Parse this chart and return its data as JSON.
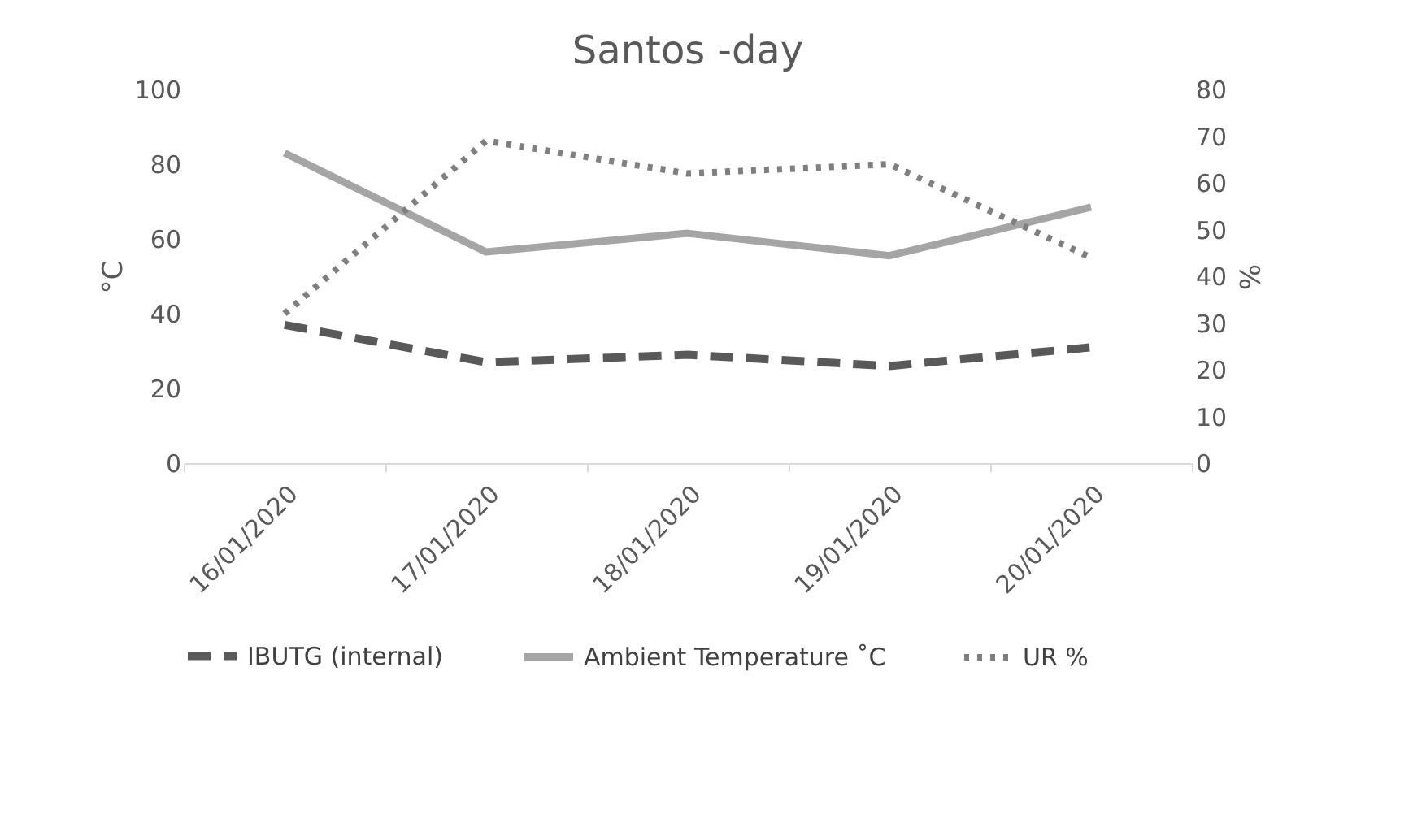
{
  "chart_data": {
    "type": "line",
    "title": "Santos -day",
    "ylabel": "°C",
    "y2label": "%",
    "categories": [
      "16/01/2020",
      "17/01/2020",
      "18/01/2020",
      "19/01/2020",
      "20/01/2020"
    ],
    "series": [
      {
        "name": "IBUTG (internal)",
        "color": "#595959",
        "line_style": "dashed",
        "values": [
          37,
          27,
          29,
          26,
          31
        ]
      },
      {
        "name": "Ambient Temperature ˚C",
        "color": "#a5a5a5",
        "line_style": "solid",
        "values": [
          83,
          56.5,
          61.5,
          55.5,
          68.5
        ]
      },
      {
        "name": "UR %",
        "color": "#7f7f7f",
        "line_style": "dotted",
        "axis": "y2",
        "values": [
          32,
          69,
          62,
          64,
          44
        ]
      }
    ],
    "ylim": [
      0,
      100
    ],
    "yticks": [
      0,
      20,
      40,
      60,
      80,
      100
    ],
    "y2lim": [
      0,
      80
    ],
    "y2ticks": [
      0,
      10,
      20,
      30,
      40,
      50,
      60,
      70,
      80
    ],
    "grid": false,
    "legend": "bottom",
    "marker": "none"
  }
}
